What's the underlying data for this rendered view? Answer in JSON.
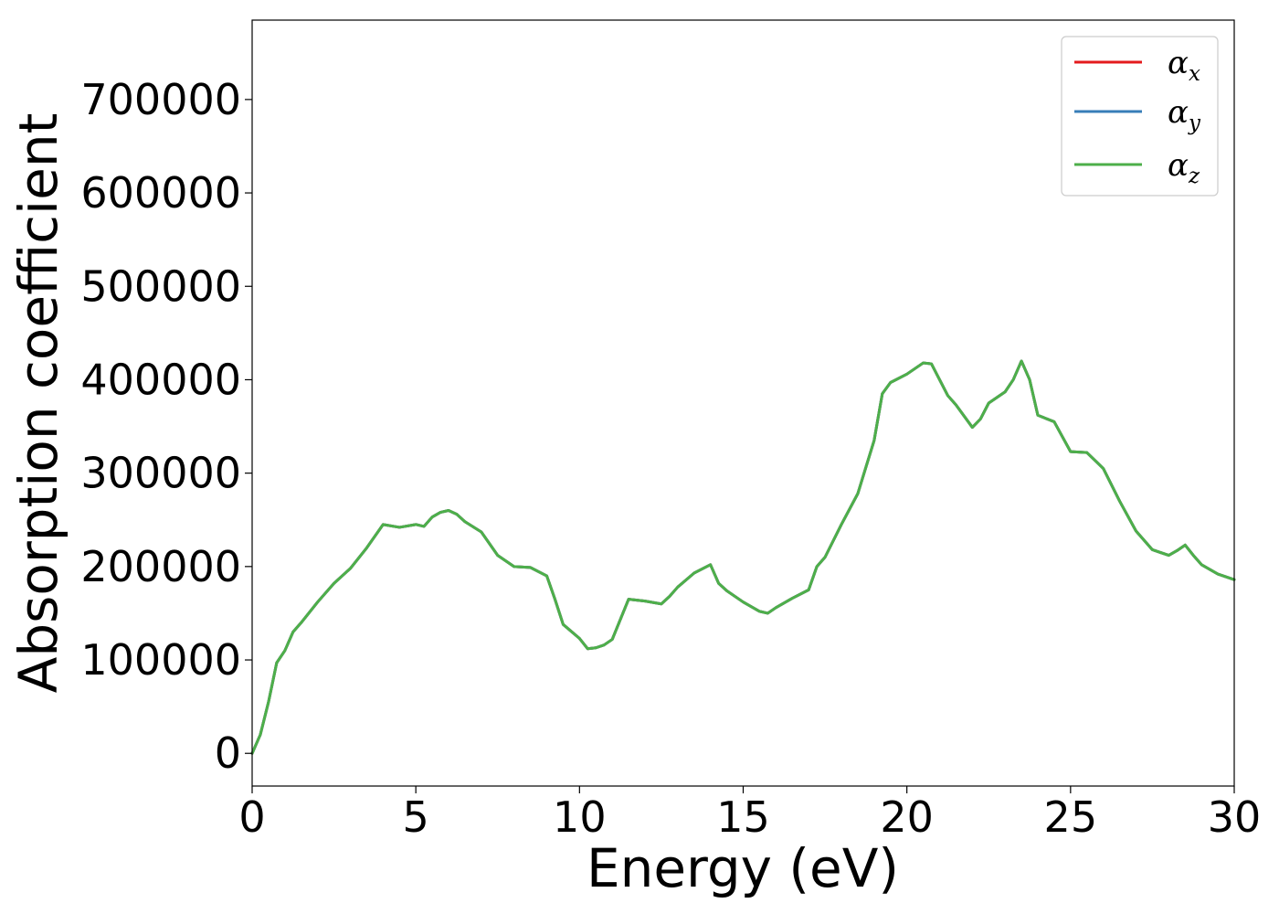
{
  "chart_data": {
    "type": "line",
    "xlabel": "Energy (eV)",
    "ylabel": "Absorption coefficient",
    "xlim": [
      0,
      30
    ],
    "ylim": [
      -35000,
      785000
    ],
    "xticks": [
      0,
      5,
      10,
      15,
      20,
      25,
      30
    ],
    "yticks": [
      0,
      100000,
      200000,
      300000,
      400000,
      500000,
      600000,
      700000
    ],
    "grid": false,
    "legend_position": "top-right",
    "x": [
      0,
      0.25,
      0.5,
      0.75,
      1.0,
      1.25,
      1.5,
      2.0,
      2.5,
      3.0,
      3.5,
      4.0,
      4.5,
      5.0,
      5.25,
      5.5,
      5.75,
      6.0,
      6.25,
      6.5,
      7.0,
      7.5,
      8.0,
      8.5,
      9.0,
      9.25,
      9.5,
      10.0,
      10.25,
      10.5,
      10.75,
      11.0,
      11.5,
      12.0,
      12.5,
      12.75,
      13.0,
      13.5,
      14.0,
      14.25,
      14.5,
      15.0,
      15.5,
      15.75,
      16.0,
      16.5,
      17.0,
      17.25,
      17.5,
      18.0,
      18.5,
      19.0,
      19.25,
      19.5,
      20.0,
      20.5,
      20.75,
      21.0,
      21.25,
      21.5,
      22.0,
      22.25,
      22.5,
      23.0,
      23.25,
      23.5,
      23.75,
      24.0,
      24.5,
      25.0,
      25.5,
      26.0,
      26.5,
      27.0,
      27.5,
      28.0,
      28.25,
      28.5,
      28.75,
      29.0,
      29.5,
      30.0
    ],
    "series": [
      {
        "name": "α_x",
        "color": "#e41a1c",
        "values": [
          0,
          20000,
          55000,
          97000,
          110000,
          130000,
          140000,
          162000,
          182000,
          198000,
          220000,
          245000,
          242000,
          245000,
          243000,
          253000,
          258000,
          260000,
          256000,
          248000,
          237000,
          212000,
          200000,
          199000,
          190000,
          165000,
          138000,
          123000,
          112000,
          113000,
          116000,
          122000,
          165000,
          163000,
          160000,
          168000,
          178000,
          193000,
          202000,
          182000,
          174000,
          162000,
          152000,
          150000,
          156000,
          166000,
          175000,
          200000,
          210000,
          245000,
          278000,
          335000,
          385000,
          397000,
          406000,
          418000,
          417000,
          400000,
          383000,
          373000,
          349000,
          358000,
          375000,
          387000,
          400000,
          420000,
          400000,
          362000,
          355000,
          323000,
          322000,
          305000,
          270000,
          238000,
          218000,
          212000,
          217000,
          223000,
          212000,
          202000,
          192000,
          186000
        ]
      },
      {
        "name": "α_y",
        "color": "#377eb8",
        "values": [
          0,
          20000,
          55000,
          97000,
          110000,
          130000,
          140000,
          162000,
          182000,
          198000,
          220000,
          245000,
          242000,
          245000,
          243000,
          253000,
          258000,
          260000,
          256000,
          248000,
          237000,
          212000,
          200000,
          199000,
          190000,
          165000,
          138000,
          123000,
          112000,
          113000,
          116000,
          122000,
          165000,
          163000,
          160000,
          168000,
          178000,
          193000,
          202000,
          182000,
          174000,
          162000,
          152000,
          150000,
          156000,
          166000,
          175000,
          200000,
          210000,
          245000,
          278000,
          335000,
          385000,
          397000,
          406000,
          418000,
          417000,
          400000,
          383000,
          373000,
          349000,
          358000,
          375000,
          387000,
          400000,
          420000,
          400000,
          362000,
          355000,
          323000,
          322000,
          305000,
          270000,
          238000,
          218000,
          212000,
          217000,
          223000,
          212000,
          202000,
          192000,
          186000
        ]
      },
      {
        "name": "α_z",
        "color": "#4daf4a",
        "values": [
          0,
          20000,
          55000,
          97000,
          110000,
          130000,
          140000,
          162000,
          182000,
          198000,
          220000,
          245000,
          242000,
          245000,
          243000,
          253000,
          258000,
          260000,
          256000,
          248000,
          237000,
          212000,
          200000,
          199000,
          190000,
          165000,
          138000,
          123000,
          112000,
          113000,
          116000,
          122000,
          165000,
          163000,
          160000,
          168000,
          178000,
          193000,
          202000,
          182000,
          174000,
          162000,
          152000,
          150000,
          156000,
          166000,
          175000,
          200000,
          210000,
          245000,
          278000,
          335000,
          385000,
          397000,
          406000,
          418000,
          417000,
          400000,
          383000,
          373000,
          349000,
          358000,
          375000,
          387000,
          400000,
          420000,
          400000,
          362000,
          355000,
          323000,
          322000,
          305000,
          270000,
          238000,
          218000,
          212000,
          217000,
          223000,
          212000,
          202000,
          192000,
          186000
        ]
      }
    ],
    "legend": [
      {
        "symbol": "α",
        "sub": "x",
        "color": "#e41a1c"
      },
      {
        "symbol": "α",
        "sub": "y",
        "color": "#377eb8"
      },
      {
        "symbol": "α",
        "sub": "z",
        "color": "#4daf4a"
      }
    ]
  }
}
